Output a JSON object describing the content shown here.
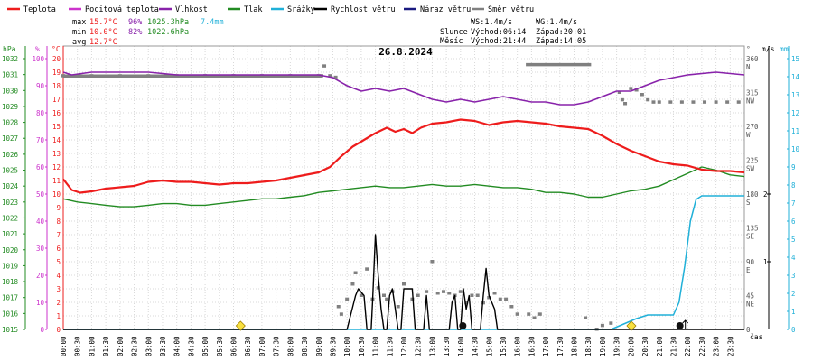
{
  "chart_data": {
    "type": "line",
    "title": "26.8.2024",
    "legend": [
      {
        "name": "Teplota",
        "color": "#ee1c1c"
      },
      {
        "name": "Pocitová teplota",
        "color": "#cc33cc"
      },
      {
        "name": "Vlhkost",
        "color": "#8822aa"
      },
      {
        "name": "Tlak",
        "color": "#228b22"
      },
      {
        "name": "Srážky",
        "color": "#20b0d8"
      },
      {
        "name": "Rychlost větru",
        "color": "#000000"
      },
      {
        "name": "Náraz větru",
        "color": "#1a1a80"
      },
      {
        "name": "Směr větru",
        "color": "#808080"
      }
    ],
    "stats": {
      "max": {
        "label": "max",
        "temp": "15.7°C",
        "hum": "96%",
        "press": "1025.3hPa",
        "rain": "7.4mm"
      },
      "min": {
        "label": "min",
        "temp": "10.0°C",
        "hum": "82%",
        "press": "1022.6hPa"
      },
      "avg": {
        "label": "avg",
        "temp": "12.7°C"
      }
    },
    "info": {
      "ws": "WS:1.4m/s",
      "wg": "WG:1.4m/s",
      "sun_label": "Slunce",
      "sunrise": "Východ:06:14",
      "sunset": "Západ:20:01",
      "moon_label": "Měsíc",
      "moonrise": "Východ:21:44",
      "moonset": "Západ:14:05"
    },
    "axes": {
      "left_units": {
        "press": "hPa",
        "hum": "%",
        "temp": "°C"
      },
      "right_units": {
        "dir": "°",
        "wind": "m/s",
        "rain": "mm"
      },
      "x_label": "čas",
      "press_ticks": [
        1015,
        1016,
        1017,
        1018,
        1019,
        1020,
        1021,
        1022,
        1023,
        1024,
        1025,
        1026,
        1027,
        1028,
        1029,
        1030,
        1031,
        1032
      ],
      "hum_ticks": [
        0,
        10,
        20,
        30,
        40,
        50,
        60,
        70,
        80,
        90,
        100
      ],
      "temp_ticks": [
        0,
        1,
        2,
        3,
        4,
        5,
        6,
        7,
        8,
        9,
        10,
        11,
        12,
        13,
        14,
        15,
        16,
        17,
        18,
        19,
        20
      ],
      "dir_ticks": [
        "0",
        "45\nNE",
        "90\nE",
        "135\nSE",
        "180\nS",
        "225\nSW",
        "270\nW",
        "315\nNW",
        "360\nN"
      ],
      "wind_ticks": [
        {
          "v": 1,
          "label": "1"
        },
        {
          "v": 2,
          "label": "2"
        }
      ],
      "rain_ticks": [
        0,
        1,
        2,
        3,
        4,
        5,
        6,
        7,
        8,
        9,
        10,
        11,
        12,
        13,
        14,
        15
      ],
      "x_ticks": [
        "00:00",
        "00:30",
        "01:00",
        "01:30",
        "02:00",
        "02:30",
        "03:00",
        "03:30",
        "04:00",
        "04:30",
        "05:00",
        "05:30",
        "06:00",
        "06:30",
        "07:00",
        "07:30",
        "08:00",
        "08:30",
        "09:00",
        "09:30",
        "10:00",
        "10:30",
        "11:00",
        "11:30",
        "12:00",
        "12:30",
        "13:00",
        "13:30",
        "14:00",
        "14:30",
        "15:00",
        "15:30",
        "16:00",
        "16:30",
        "17:00",
        "17:30",
        "18:00",
        "18:30",
        "19:00",
        "19:30",
        "20:00",
        "20:30",
        "21:00",
        "21:30",
        "22:00",
        "22:30",
        "23:00",
        "23:30"
      ],
      "temp_range": [
        0,
        20
      ],
      "press_range": [
        1015,
        1032
      ],
      "hum_range": [
        0,
        100
      ],
      "dir_range": [
        0,
        360
      ],
      "wind_range": [
        0,
        3
      ],
      "rain_range": [
        0,
        15
      ]
    },
    "series": {
      "temperature": [
        [
          0,
          11.1
        ],
        [
          0.3,
          10.3
        ],
        [
          0.6,
          10.1
        ],
        [
          1,
          10.2
        ],
        [
          1.5,
          10.4
        ],
        [
          2,
          10.5
        ],
        [
          2.5,
          10.6
        ],
        [
          3,
          10.9
        ],
        [
          3.5,
          11.0
        ],
        [
          4,
          10.9
        ],
        [
          4.5,
          10.9
        ],
        [
          5,
          10.8
        ],
        [
          5.5,
          10.7
        ],
        [
          6,
          10.8
        ],
        [
          6.5,
          10.8
        ],
        [
          7,
          10.9
        ],
        [
          7.5,
          11.0
        ],
        [
          8,
          11.2
        ],
        [
          8.5,
          11.4
        ],
        [
          9,
          11.6
        ],
        [
          9.4,
          12.0
        ],
        [
          9.8,
          12.8
        ],
        [
          10.2,
          13.5
        ],
        [
          10.6,
          14.0
        ],
        [
          11,
          14.5
        ],
        [
          11.4,
          14.9
        ],
        [
          11.7,
          14.6
        ],
        [
          12,
          14.8
        ],
        [
          12.3,
          14.5
        ],
        [
          12.6,
          14.9
        ],
        [
          13,
          15.2
        ],
        [
          13.5,
          15.3
        ],
        [
          14,
          15.5
        ],
        [
          14.5,
          15.4
        ],
        [
          15,
          15.1
        ],
        [
          15.5,
          15.3
        ],
        [
          16,
          15.4
        ],
        [
          16.5,
          15.3
        ],
        [
          17,
          15.2
        ],
        [
          17.5,
          15.0
        ],
        [
          18,
          14.9
        ],
        [
          18.5,
          14.8
        ],
        [
          19,
          14.3
        ],
        [
          19.5,
          13.7
        ],
        [
          20,
          13.2
        ],
        [
          20.5,
          12.8
        ],
        [
          21,
          12.4
        ],
        [
          21.5,
          12.2
        ],
        [
          22,
          12.1
        ],
        [
          22.5,
          11.8
        ],
        [
          23,
          11.7
        ],
        [
          23.5,
          11.7
        ],
        [
          24,
          11.6
        ]
      ],
      "humidity": [
        [
          0,
          95
        ],
        [
          0.3,
          94
        ],
        [
          1,
          95
        ],
        [
          2,
          95
        ],
        [
          3,
          95
        ],
        [
          4,
          94
        ],
        [
          5,
          94
        ],
        [
          6,
          94
        ],
        [
          7,
          94
        ],
        [
          8,
          94
        ],
        [
          9,
          94
        ],
        [
          9.5,
          93
        ],
        [
          10,
          90
        ],
        [
          10.5,
          88
        ],
        [
          11,
          89
        ],
        [
          11.5,
          88
        ],
        [
          12,
          89
        ],
        [
          12.5,
          87
        ],
        [
          13,
          85
        ],
        [
          13.5,
          84
        ],
        [
          14,
          85
        ],
        [
          14.5,
          84
        ],
        [
          15,
          85
        ],
        [
          15.5,
          86
        ],
        [
          16,
          85
        ],
        [
          16.5,
          84
        ],
        [
          17,
          84
        ],
        [
          17.5,
          83
        ],
        [
          18,
          83
        ],
        [
          18.5,
          84
        ],
        [
          19,
          86
        ],
        [
          19.5,
          88
        ],
        [
          20,
          88
        ],
        [
          20.5,
          90
        ],
        [
          21,
          92
        ],
        [
          21.5,
          93
        ],
        [
          22,
          94
        ],
        [
          23,
          95
        ],
        [
          24,
          94
        ]
      ],
      "pressure": [
        [
          0,
          1023.2
        ],
        [
          0.5,
          1023.0
        ],
        [
          1,
          1022.9
        ],
        [
          1.5,
          1022.8
        ],
        [
          2,
          1022.7
        ],
        [
          2.5,
          1022.7
        ],
        [
          3,
          1022.8
        ],
        [
          3.5,
          1022.9
        ],
        [
          4,
          1022.9
        ],
        [
          4.5,
          1022.8
        ],
        [
          5,
          1022.8
        ],
        [
          5.5,
          1022.9
        ],
        [
          6,
          1023.0
        ],
        [
          6.5,
          1023.1
        ],
        [
          7,
          1023.2
        ],
        [
          7.5,
          1023.2
        ],
        [
          8,
          1023.3
        ],
        [
          8.5,
          1023.4
        ],
        [
          9,
          1023.6
        ],
        [
          9.5,
          1023.7
        ],
        [
          10,
          1023.8
        ],
        [
          10.5,
          1023.9
        ],
        [
          11,
          1024.0
        ],
        [
          11.5,
          1023.9
        ],
        [
          12,
          1023.9
        ],
        [
          12.5,
          1024.0
        ],
        [
          13,
          1024.1
        ],
        [
          13.5,
          1024.0
        ],
        [
          14,
          1024.0
        ],
        [
          14.5,
          1024.1
        ],
        [
          15,
          1024.0
        ],
        [
          15.5,
          1023.9
        ],
        [
          16,
          1023.9
        ],
        [
          16.5,
          1023.8
        ],
        [
          17,
          1023.6
        ],
        [
          17.5,
          1023.6
        ],
        [
          18,
          1023.5
        ],
        [
          18.5,
          1023.3
        ],
        [
          19,
          1023.3
        ],
        [
          19.5,
          1023.5
        ],
        [
          20,
          1023.7
        ],
        [
          20.5,
          1023.8
        ],
        [
          21,
          1024.0
        ],
        [
          21.5,
          1024.4
        ],
        [
          22,
          1024.8
        ],
        [
          22.5,
          1025.2
        ],
        [
          23,
          1025.0
        ],
        [
          23.5,
          1024.7
        ],
        [
          24,
          1024.6
        ]
      ],
      "rain": [
        [
          0,
          0
        ],
        [
          19.3,
          0
        ],
        [
          19.6,
          0.2
        ],
        [
          19.9,
          0.4
        ],
        [
          20.2,
          0.6
        ],
        [
          20.6,
          0.8
        ],
        [
          21.5,
          0.8
        ],
        [
          21.7,
          1.5
        ],
        [
          21.9,
          3.5
        ],
        [
          22.1,
          6.0
        ],
        [
          22.3,
          7.2
        ],
        [
          22.5,
          7.4
        ],
        [
          24,
          7.4
        ]
      ],
      "wind_speed": [
        [
          0,
          0
        ],
        [
          10,
          0
        ],
        [
          10.3,
          0.5
        ],
        [
          10.4,
          0.6
        ],
        [
          10.6,
          0.5
        ],
        [
          10.7,
          0
        ],
        [
          10.85,
          0
        ],
        [
          10.9,
          0.4
        ],
        [
          11.0,
          1.4
        ],
        [
          11.1,
          0.8
        ],
        [
          11.2,
          0.3
        ],
        [
          11.3,
          0
        ],
        [
          11.4,
          0
        ],
        [
          11.5,
          0.5
        ],
        [
          11.6,
          0.6
        ],
        [
          11.7,
          0.3
        ],
        [
          11.8,
          0
        ],
        [
          11.9,
          0
        ],
        [
          12.0,
          0.6
        ],
        [
          12.3,
          0.6
        ],
        [
          12.4,
          0
        ],
        [
          12.7,
          0
        ],
        [
          12.8,
          0.5
        ],
        [
          12.9,
          0
        ],
        [
          13.6,
          0
        ],
        [
          13.7,
          0.4
        ],
        [
          13.8,
          0.5
        ],
        [
          13.9,
          0
        ],
        [
          14.0,
          0
        ],
        [
          14.1,
          0.6
        ],
        [
          14.2,
          0.3
        ],
        [
          14.3,
          0.5
        ],
        [
          14.4,
          0
        ],
        [
          14.7,
          0
        ],
        [
          14.8,
          0.5
        ],
        [
          14.9,
          0.9
        ],
        [
          15.0,
          0.5
        ],
        [
          15.2,
          0.3
        ],
        [
          15.3,
          0
        ],
        [
          24,
          0
        ]
      ],
      "wind_direction": [
        [
          0,
          337
        ],
        [
          1,
          337
        ],
        [
          2,
          337
        ],
        [
          3,
          337
        ],
        [
          4,
          337
        ],
        [
          5,
          337
        ],
        [
          6,
          337
        ],
        [
          7,
          337
        ],
        [
          8,
          337
        ],
        [
          9,
          337
        ],
        [
          9.1,
          337
        ],
        [
          9.2,
          350
        ],
        [
          9.4,
          337
        ],
        [
          9.6,
          335
        ],
        [
          9.7,
          30
        ],
        [
          9.8,
          20
        ],
        [
          10.0,
          40
        ],
        [
          10.2,
          60
        ],
        [
          10.3,
          75
        ],
        [
          10.5,
          45
        ],
        [
          10.7,
          80
        ],
        [
          10.9,
          40
        ],
        [
          11.1,
          55
        ],
        [
          11.3,
          45
        ],
        [
          11.4,
          40
        ],
        [
          11.6,
          50
        ],
        [
          11.8,
          30
        ],
        [
          12.0,
          60
        ],
        [
          12.3,
          40
        ],
        [
          12.5,
          45
        ],
        [
          12.8,
          50
        ],
        [
          13.0,
          90
        ],
        [
          13.2,
          48
        ],
        [
          13.4,
          50
        ],
        [
          13.6,
          48
        ],
        [
          13.8,
          45
        ],
        [
          14.0,
          50
        ],
        [
          14.2,
          35
        ],
        [
          14.4,
          45
        ],
        [
          14.6,
          45
        ],
        [
          14.8,
          35
        ],
        [
          15.0,
          42
        ],
        [
          15.2,
          48
        ],
        [
          15.4,
          40
        ],
        [
          15.6,
          40
        ],
        [
          15.8,
          30
        ],
        [
          16.0,
          20
        ],
        [
          16.4,
          20
        ],
        [
          16.6,
          15
        ],
        [
          16.8,
          20
        ],
        [
          18.4,
          15
        ],
        [
          18.8,
          0
        ],
        [
          19.0,
          5
        ],
        [
          19.3,
          8
        ],
        [
          19.6,
          315
        ],
        [
          19.7,
          305
        ],
        [
          19.8,
          300
        ],
        [
          20.0,
          320
        ],
        [
          20.2,
          318
        ],
        [
          20.4,
          312
        ],
        [
          20.6,
          305
        ],
        [
          20.8,
          302
        ],
        [
          21.0,
          302
        ],
        [
          21.4,
          302
        ],
        [
          21.8,
          302
        ],
        [
          22.2,
          302
        ],
        [
          22.6,
          302
        ],
        [
          23.0,
          302
        ],
        [
          23.4,
          302
        ],
        [
          23.8,
          302
        ]
      ],
      "dir_bar": [
        [
          16.3,
          352
        ],
        [
          18.6,
          352
        ]
      ],
      "markers": {
        "sunrise": 6.25,
        "sunset": 20.02,
        "moonrise": 21.73,
        "moonset": 14.08
      }
    }
  }
}
